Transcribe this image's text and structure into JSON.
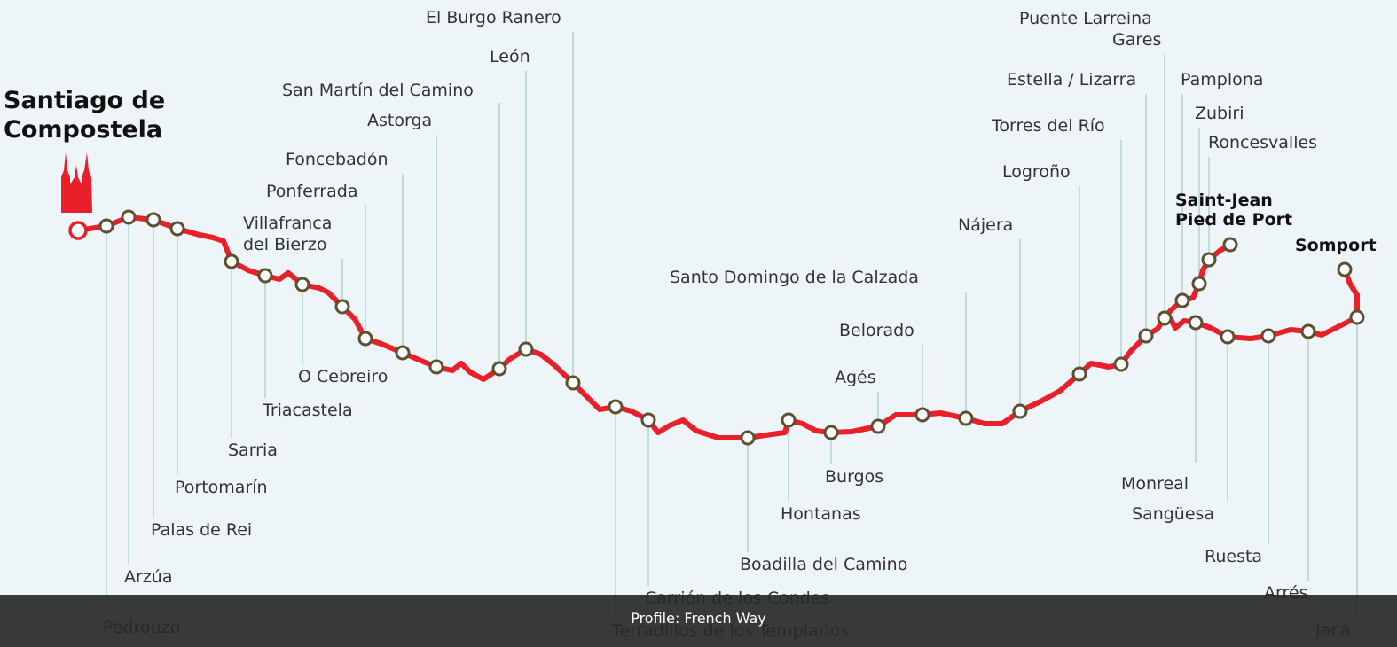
{
  "route": {
    "colors": {
      "path": "#e8202a",
      "marker_fill": "#ffffff",
      "marker_stroke": "#5c5030",
      "leader": "#a8cfc4",
      "start_marker": "#e8202a",
      "cathedral": "#e8202a"
    },
    "start": {
      "title_line1": "Santiago de",
      "title_line2": "Compostela",
      "icon": "cathedral-icon"
    },
    "stops": [
      {
        "name": "Pedrouzo"
      },
      {
        "name": "Arzúa"
      },
      {
        "name": "Palas de Rei"
      },
      {
        "name": "Portomarín"
      },
      {
        "name": "Sarria"
      },
      {
        "name": "Triacastela"
      },
      {
        "name": "O Cebreiro"
      },
      {
        "name_line1": "Villafranca",
        "name_line2": "del Bierzo"
      },
      {
        "name": "Ponferrada"
      },
      {
        "name": "Foncebadón"
      },
      {
        "name": "Astorga"
      },
      {
        "name": "San Martín del Camino"
      },
      {
        "name": "León"
      },
      {
        "name": "El Burgo Ranero"
      },
      {
        "name": "Terradillos de los Templarios"
      },
      {
        "name": "Carrión de los Condes"
      },
      {
        "name": "Boadilla del Camino"
      },
      {
        "name": "Hontanas"
      },
      {
        "name": "Burgos"
      },
      {
        "name": "Agés"
      },
      {
        "name": "Belorado"
      },
      {
        "name": "Santo Domingo de la Calzada"
      },
      {
        "name": "Nájera"
      },
      {
        "name": "Logroño"
      },
      {
        "name": "Torres del Río"
      },
      {
        "name": "Estella / Lizarra"
      },
      {
        "name_line1": "Puente Larreina",
        "name_line2": "Gares"
      },
      {
        "name": "Pamplona"
      },
      {
        "name": "Zubiri"
      },
      {
        "name": "Roncesvalles"
      },
      {
        "name_line1": "Saint-Jean",
        "name_line2": "Pied de Port"
      },
      {
        "name": "Monreal"
      },
      {
        "name": "Sangüesa"
      },
      {
        "name": "Ruesta"
      },
      {
        "name": "Arrés"
      },
      {
        "name": "Jaca"
      },
      {
        "name": "Somport"
      }
    ]
  },
  "caption": "Profile: French Way"
}
